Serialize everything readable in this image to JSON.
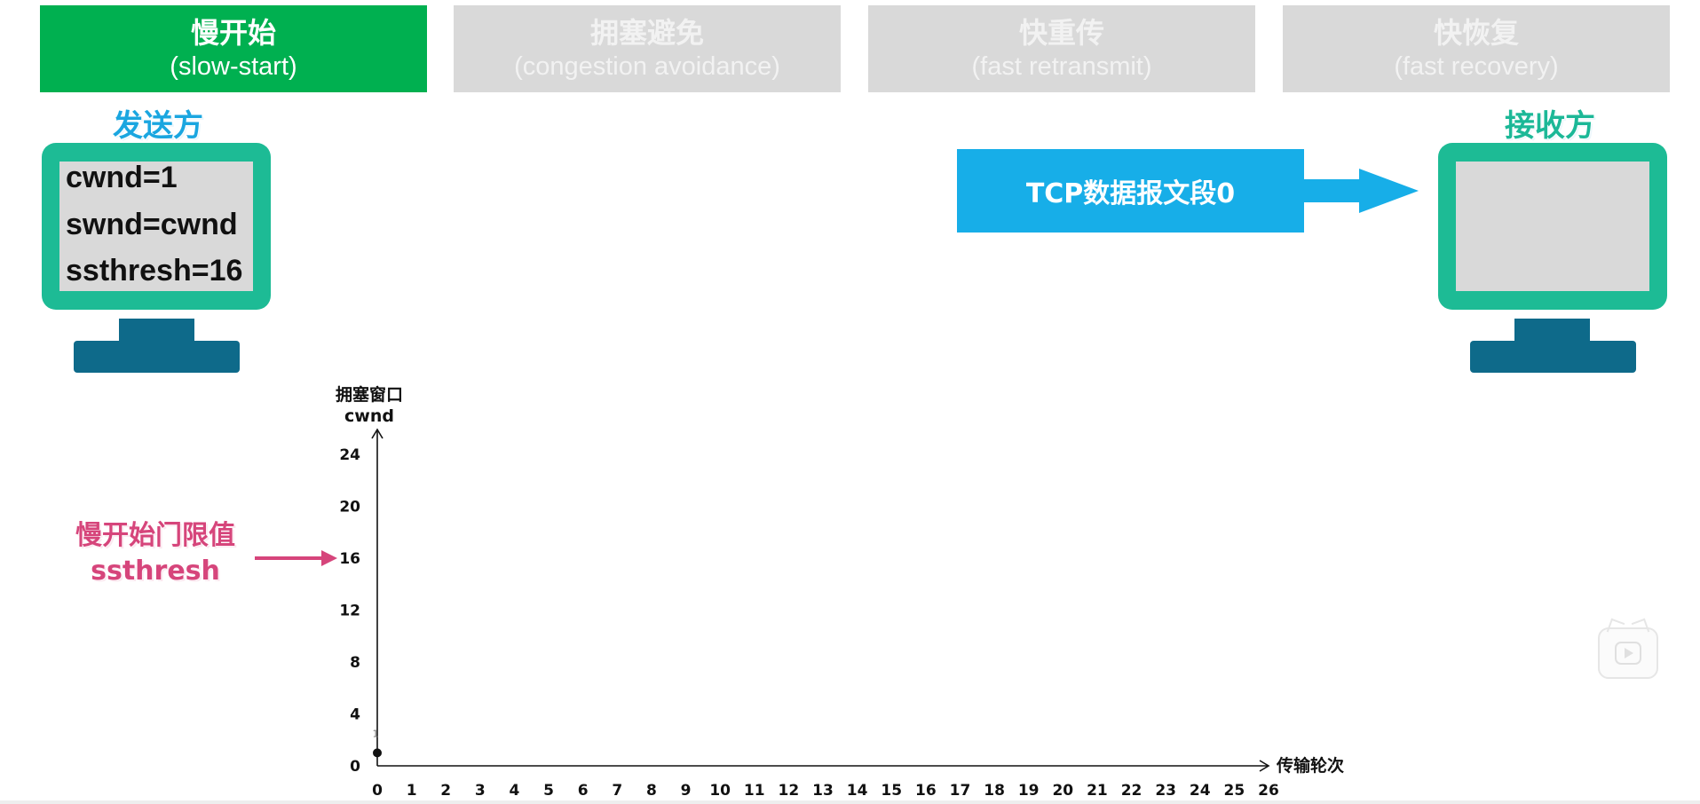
{
  "tabs": [
    {
      "cn": "慢开始",
      "en": "(slow-start)",
      "active": true
    },
    {
      "cn": "拥塞避免",
      "en": "(congestion avoidance)",
      "active": false
    },
    {
      "cn": "快重传",
      "en": "(fast retransmit)",
      "active": false
    },
    {
      "cn": "快恢复",
      "en": "(fast recovery)",
      "active": false
    }
  ],
  "sender": {
    "label": "发送方",
    "vars": [
      "cwnd=1",
      "swnd=cwnd",
      "ssthresh=16"
    ]
  },
  "receiver": {
    "label": "接收方"
  },
  "segment": {
    "label": "TCP数据报文段0"
  },
  "threshold": {
    "line1": "慢开始门限值",
    "line2": "ssthresh"
  },
  "colors": {
    "active_tab": "#00b050",
    "inactive_tab": "#d9d9d9",
    "monitor_frame": "#1dbb95",
    "monitor_stand": "#0e6a8a",
    "segment": "#17aee8",
    "threshold": "#d6457b"
  },
  "chart_data": {
    "type": "line",
    "ylabel": [
      "拥塞窗口",
      "cwnd"
    ],
    "xlabel": "传输轮次",
    "x_ticks": [
      0,
      1,
      2,
      3,
      4,
      5,
      6,
      7,
      8,
      9,
      10,
      11,
      12,
      13,
      14,
      15,
      16,
      17,
      18,
      19,
      20,
      21,
      22,
      23,
      24,
      25,
      26
    ],
    "y_ticks": [
      0,
      4,
      8,
      12,
      16,
      20,
      24
    ],
    "xlim": [
      0,
      26
    ],
    "ylim": [
      0,
      24
    ],
    "series": [
      {
        "x": [
          0
        ],
        "y": [
          1
        ]
      }
    ],
    "point_annotation": "1",
    "ssthresh": 16
  },
  "controls": {
    "play_icon": "play-icon"
  }
}
